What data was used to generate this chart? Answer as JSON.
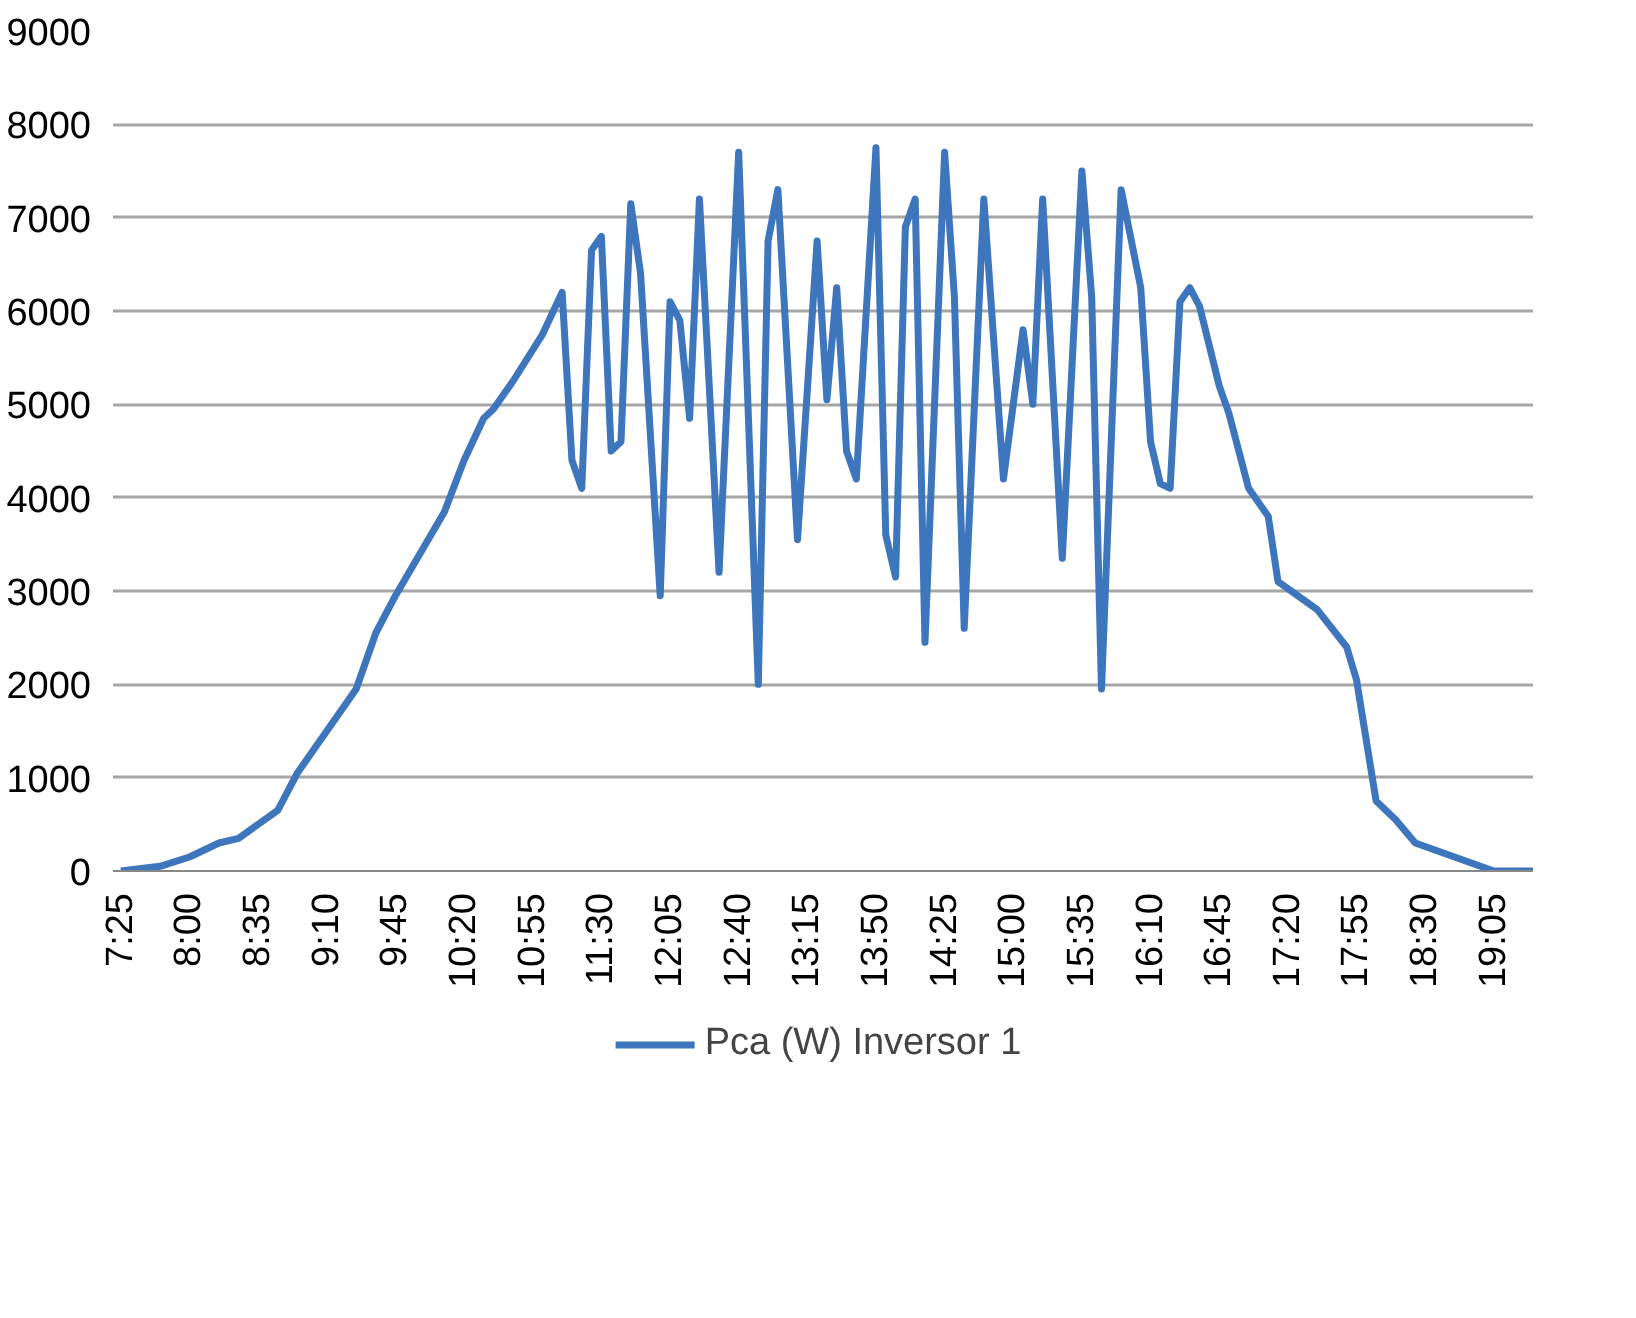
{
  "chart_data": {
    "type": "line",
    "legend": "bottom",
    "grid": "y",
    "line_style": "solid",
    "xlim": [
      7.35,
      19.4167
    ],
    "ylim": [
      0,
      9000
    ],
    "yticks": [
      0,
      1000,
      2000,
      3000,
      4000,
      5000,
      6000,
      7000,
      8000,
      9000
    ],
    "xticks": [
      {
        "value": 7.4167,
        "label": "7:25"
      },
      {
        "value": 8.0,
        "label": "8:00"
      },
      {
        "value": 8.5833,
        "label": "8:35"
      },
      {
        "value": 9.1667,
        "label": "9:10"
      },
      {
        "value": 9.75,
        "label": "9:45"
      },
      {
        "value": 10.3333,
        "label": "10:20"
      },
      {
        "value": 10.9167,
        "label": "10:55"
      },
      {
        "value": 11.5,
        "label": "11:30"
      },
      {
        "value": 12.0833,
        "label": "12:05"
      },
      {
        "value": 12.6667,
        "label": "12:40"
      },
      {
        "value": 13.25,
        "label": "13:15"
      },
      {
        "value": 13.8333,
        "label": "13:50"
      },
      {
        "value": 14.4167,
        "label": "14:25"
      },
      {
        "value": 15.0,
        "label": "15:00"
      },
      {
        "value": 15.5833,
        "label": "15:35"
      },
      {
        "value": 16.1667,
        "label": "16:10"
      },
      {
        "value": 16.75,
        "label": "16:45"
      },
      {
        "value": 17.3333,
        "label": "17:20"
      },
      {
        "value": 17.9167,
        "label": "17:55"
      },
      {
        "value": 18.5,
        "label": "18:30"
      },
      {
        "value": 19.0833,
        "label": "19:05"
      }
    ],
    "x": [
      7.4167,
      7.75,
      8.0,
      8.25,
      8.4167,
      8.75,
      8.9167,
      9.4167,
      9.5833,
      9.75,
      10.1667,
      10.3333,
      10.5,
      10.5833,
      10.75,
      11.0,
      11.1667,
      11.25,
      11.3333,
      11.4167,
      11.5,
      11.5833,
      11.6667,
      11.75,
      11.8333,
      12.0,
      12.0833,
      12.1667,
      12.25,
      12.3333,
      12.5,
      12.6667,
      12.8333,
      12.9167,
      13.0,
      13.1667,
      13.3333,
      13.4167,
      13.5,
      13.5833,
      13.6667,
      13.8333,
      13.9167,
      14.0,
      14.0833,
      14.1667,
      14.25,
      14.4167,
      14.5,
      14.5833,
      14.75,
      14.9167,
      15.0833,
      15.1667,
      15.25,
      15.4167,
      15.5833,
      15.6667,
      15.75,
      15.9167,
      16.0833,
      16.1667,
      16.25,
      16.3333,
      16.4167,
      16.5,
      16.5833,
      16.75,
      16.8333,
      17.0,
      17.1667,
      17.25,
      17.5833,
      17.8333,
      17.9167,
      18.0833,
      18.25,
      18.4167,
      18.75,
      19.0833,
      19.4167
    ],
    "series": [
      {
        "name": "Pca (W) Inversor 1",
        "color": "#3e76bd",
        "values": [
          0,
          50,
          150,
          300,
          350,
          650,
          1050,
          1950,
          2550,
          2950,
          3850,
          4400,
          4850,
          4950,
          5250,
          5750,
          6200,
          4400,
          4100,
          6650,
          6800,
          4500,
          4600,
          7150,
          6400,
          2950,
          6100,
          5900,
          4850,
          7200,
          3200,
          7700,
          2000,
          6750,
          7300,
          3550,
          6750,
          5050,
          6250,
          4500,
          4200,
          7750,
          3600,
          3150,
          6900,
          7200,
          2450,
          7700,
          6150,
          2600,
          7200,
          4200,
          5800,
          5000,
          7200,
          3350,
          7500,
          6150,
          1950,
          7300,
          6250,
          4600,
          4150,
          4100,
          6100,
          6250,
          6050,
          5200,
          4900,
          4100,
          3800,
          3100,
          2800,
          2400,
          2050,
          750,
          550,
          300,
          150,
          0,
          0
        ]
      }
    ]
  }
}
